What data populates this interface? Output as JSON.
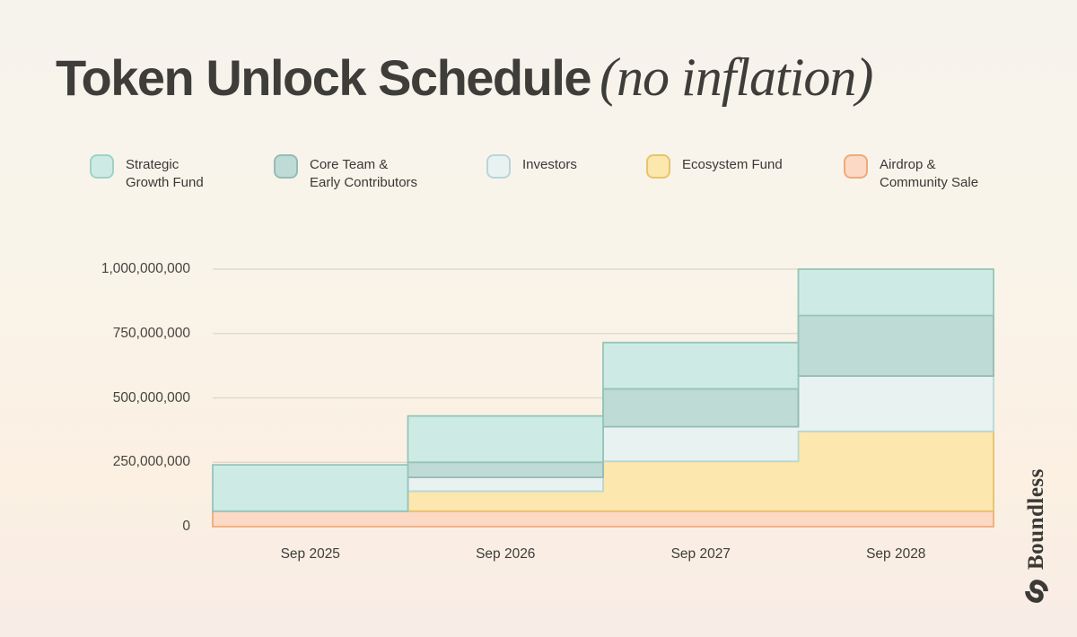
{
  "title": {
    "main": "Token Unlock Schedule",
    "suffix": "(no inflation)"
  },
  "brand": {
    "name": "Boundless"
  },
  "legend": [
    {
      "label": "Strategic\nGrowth Fund",
      "fill": "#cdebe4",
      "border": "#a0d2c6"
    },
    {
      "label": "Core Team &\nEarly Contributors",
      "fill": "#bedbd6",
      "border": "#96bcb5"
    },
    {
      "label": "Investors",
      "fill": "#e7f2f1",
      "border": "#b9d5da"
    },
    {
      "label": "Ecosystem Fund",
      "fill": "#fce7ae",
      "border": "#e8c46d"
    },
    {
      "label": "Airdrop &\nCommunity Sale",
      "fill": "#fbd9c5",
      "border": "#f0a97c"
    }
  ],
  "chart_data": {
    "type": "area",
    "subtype": "stacked-step-cumulative",
    "title": "Token Unlock Schedule (no inflation)",
    "xlabel": "",
    "ylabel": "",
    "x": [
      "Sep 2025",
      "Sep 2026",
      "Sep 2027",
      "Sep 2028"
    ],
    "ylim": [
      0,
      1000000000
    ],
    "y_ticks": [
      0,
      250000000,
      500000000,
      750000000,
      1000000000
    ],
    "y_tick_labels": [
      "0",
      "250,000,000",
      "500,000,000",
      "750,000,000",
      "1,000,000,000"
    ],
    "grid": true,
    "legend_position": "top",
    "series": [
      {
        "name": "Airdrop & Community Sale",
        "values": [
          60000000,
          60000000,
          60000000,
          60000000
        ],
        "fill": "#fbd9c5",
        "stroke": "#eeab78"
      },
      {
        "name": "Ecosystem Fund",
        "values": [
          0,
          77500000,
          193750000,
          310000000
        ],
        "fill": "#fce7ae",
        "stroke": "#e7c06a"
      },
      {
        "name": "Investors",
        "values": [
          0,
          53750000,
          134375000,
          215000000
        ],
        "fill": "#e7f2f1",
        "stroke": "#bad8d4"
      },
      {
        "name": "Core Team & Early Contributors",
        "values": [
          0,
          58750000,
          146875000,
          235000000
        ],
        "fill": "#bedbd6",
        "stroke": "#93bab4"
      },
      {
        "name": "Strategic Growth Fund",
        "values": [
          180000000,
          180000000,
          180000000,
          180000000
        ],
        "fill": "#cdebe4",
        "stroke": "#96c4b9"
      }
    ],
    "cumulative_totals": [
      240000000,
      430000000,
      715000000,
      1000000000
    ]
  }
}
